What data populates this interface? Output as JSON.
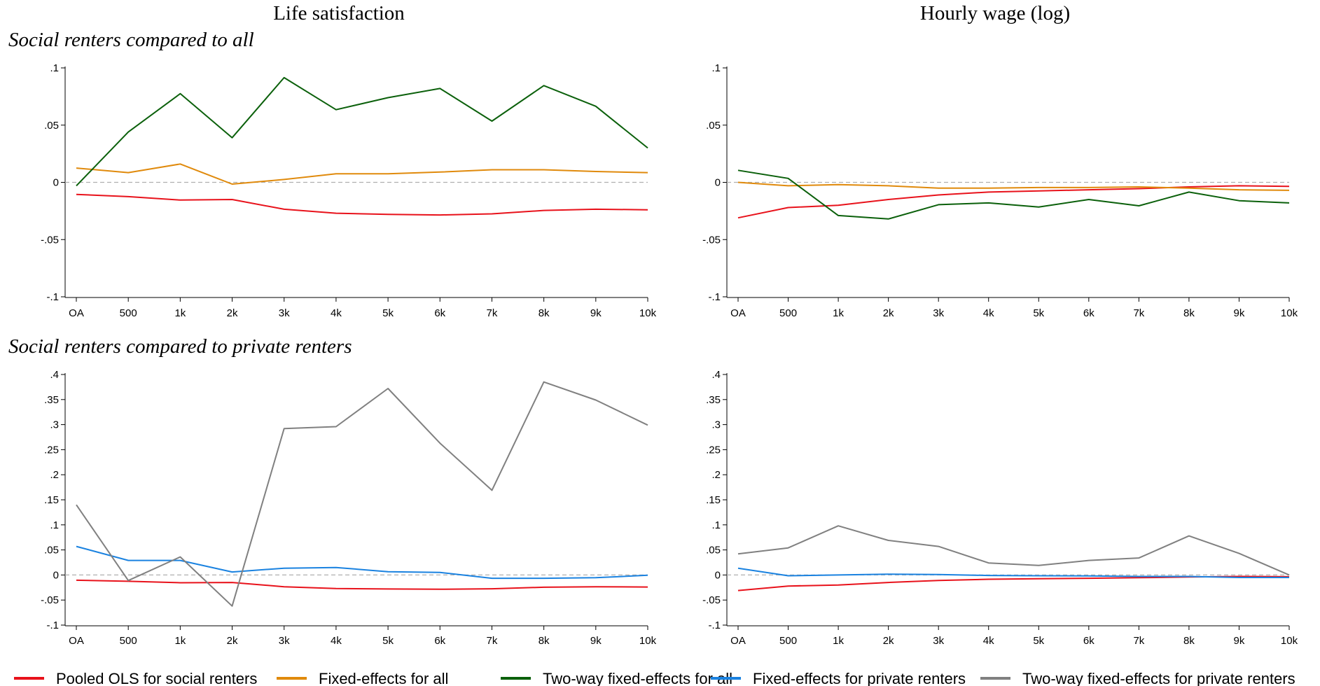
{
  "figure": {
    "col_titles": [
      "Life satisfaction",
      "Hourly wage (log)"
    ],
    "row_titles": [
      "Social renters compared to all",
      "Social renters compared to private renters"
    ]
  },
  "legend": [
    {
      "label": "Pooled OLS for social renters",
      "color": "#e8121b"
    },
    {
      "label": "Fixed-effects for all",
      "color": "#e08a0c"
    },
    {
      "label": "Two-way fixed-effects for all",
      "color": "#0b600b"
    },
    {
      "label": "Fixed-effects for private renters",
      "color": "#1a82e0"
    },
    {
      "label": "Two-way fixed-effects for private renters",
      "color": "#808080"
    }
  ],
  "chart_data": [
    {
      "type": "line",
      "title": "Life satisfaction",
      "categories": [
        "OA",
        "500",
        "1k",
        "2k",
        "3k",
        "4k",
        "5k",
        "6k",
        "7k",
        "8k",
        "9k",
        "10k"
      ],
      "ylim": [
        -0.1,
        0.1
      ],
      "yticks": [
        -0.1,
        -0.05,
        0,
        0.05,
        0.1
      ],
      "ytick_labels": [
        "-.1",
        "-.05",
        "0",
        ".05",
        ".1"
      ],
      "grid": false,
      "series": [
        {
          "name": "Pooled OLS for social renters",
          "color": "#e8121b",
          "values": [
            -0.0105,
            -0.0125,
            -0.0155,
            -0.015,
            -0.0235,
            -0.027,
            -0.028,
            -0.0285,
            -0.0275,
            -0.0245,
            -0.0235,
            -0.024
          ]
        },
        {
          "name": "Fixed-effects for all",
          "color": "#e08a0c",
          "values": [
            0.0125,
            0.0085,
            0.016,
            -0.0015,
            0.0025,
            0.0075,
            0.0075,
            0.009,
            0.011,
            0.011,
            0.0095,
            0.0085
          ]
        },
        {
          "name": "Two-way fixed-effects for all",
          "color": "#0b600b",
          "values": [
            -0.003,
            0.044,
            0.0775,
            0.039,
            0.0915,
            0.0635,
            0.074,
            0.082,
            0.0535,
            0.0845,
            0.0665,
            0.03
          ]
        }
      ]
    },
    {
      "type": "line",
      "title": "Hourly wage (log)",
      "categories": [
        "OA",
        "500",
        "1k",
        "2k",
        "3k",
        "4k",
        "5k",
        "6k",
        "7k",
        "8k",
        "9k",
        "10k"
      ],
      "ylim": [
        -0.1,
        0.1
      ],
      "yticks": [
        -0.1,
        -0.05,
        0,
        0.05,
        0.1
      ],
      "ytick_labels": [
        "-.1",
        "-.05",
        "0",
        ".05",
        ".1"
      ],
      "grid": false,
      "series": [
        {
          "name": "Pooled OLS for social renters",
          "color": "#e8121b",
          "values": [
            -0.031,
            -0.022,
            -0.02,
            -0.015,
            -0.011,
            -0.0085,
            -0.0075,
            -0.0065,
            -0.0055,
            -0.004,
            -0.003,
            -0.0035
          ]
        },
        {
          "name": "Fixed-effects for all",
          "color": "#e08a0c",
          "values": [
            0.0,
            -0.003,
            -0.002,
            -0.003,
            -0.005,
            -0.005,
            -0.0045,
            -0.0045,
            -0.004,
            -0.005,
            -0.0065,
            -0.007
          ]
        },
        {
          "name": "Two-way fixed-effects for all",
          "color": "#0b600b",
          "values": [
            0.0105,
            0.0035,
            -0.029,
            -0.032,
            -0.0195,
            -0.018,
            -0.0215,
            -0.015,
            -0.0205,
            -0.0085,
            -0.016,
            -0.018
          ]
        }
      ]
    },
    {
      "type": "line",
      "title": "Life satisfaction",
      "categories": [
        "OA",
        "500",
        "1k",
        "2k",
        "3k",
        "4k",
        "5k",
        "6k",
        "7k",
        "8k",
        "9k",
        "10k"
      ],
      "ylim": [
        -0.1,
        0.4
      ],
      "yticks": [
        -0.1,
        -0.05,
        0,
        0.05,
        0.1,
        0.15,
        0.2,
        0.25,
        0.3,
        0.35,
        0.4
      ],
      "ytick_labels": [
        "-.1",
        "-.05",
        "0",
        ".05",
        ".1",
        ".15",
        ".2",
        ".25",
        ".3",
        ".35",
        ".4"
      ],
      "grid": false,
      "series": [
        {
          "name": "Pooled OLS for social renters",
          "color": "#e8121b",
          "values": [
            -0.0105,
            -0.0125,
            -0.0155,
            -0.015,
            -0.0235,
            -0.027,
            -0.028,
            -0.0285,
            -0.0275,
            -0.0245,
            -0.0235,
            -0.024
          ]
        },
        {
          "name": "Fixed-effects for private renters",
          "color": "#1a82e0",
          "values": [
            0.057,
            0.029,
            0.029,
            0.006,
            0.0135,
            0.015,
            0.0065,
            0.005,
            -0.0065,
            -0.0065,
            -0.0055,
            -0.0005
          ]
        },
        {
          "name": "Two-way fixed-effects for private renters",
          "color": "#808080",
          "values": [
            0.14,
            -0.011,
            0.036,
            -0.062,
            0.292,
            0.296,
            0.372,
            0.263,
            0.169,
            0.385,
            0.349,
            0.299
          ]
        }
      ]
    },
    {
      "type": "line",
      "title": "Hourly wage (log)",
      "categories": [
        "OA",
        "500",
        "1k",
        "2k",
        "3k",
        "4k",
        "5k",
        "6k",
        "7k",
        "8k",
        "9k",
        "10k"
      ],
      "ylim": [
        -0.1,
        0.4
      ],
      "yticks": [
        -0.1,
        -0.05,
        0,
        0.05,
        0.1,
        0.15,
        0.2,
        0.25,
        0.3,
        0.35,
        0.4
      ],
      "ytick_labels": [
        "-.1",
        "-.05",
        "0",
        ".05",
        ".1",
        ".15",
        ".2",
        ".25",
        ".3",
        ".35",
        ".4"
      ],
      "grid": false,
      "series": [
        {
          "name": "Pooled OLS for social renters",
          "color": "#e8121b",
          "values": [
            -0.031,
            -0.022,
            -0.02,
            -0.015,
            -0.011,
            -0.0085,
            -0.0075,
            -0.0065,
            -0.0055,
            -0.004,
            -0.003,
            -0.0035
          ]
        },
        {
          "name": "Fixed-effects for private renters",
          "color": "#1a82e0",
          "values": [
            0.0135,
            -0.0015,
            0.0,
            0.0015,
            0.001,
            -0.001,
            -0.0015,
            -0.002,
            -0.003,
            -0.003,
            -0.005,
            -0.005
          ]
        },
        {
          "name": "Two-way fixed-effects for private renters",
          "color": "#808080",
          "values": [
            0.042,
            0.054,
            0.098,
            0.069,
            0.057,
            0.024,
            0.019,
            0.029,
            0.034,
            0.078,
            0.043,
            0.0
          ]
        }
      ]
    }
  ]
}
